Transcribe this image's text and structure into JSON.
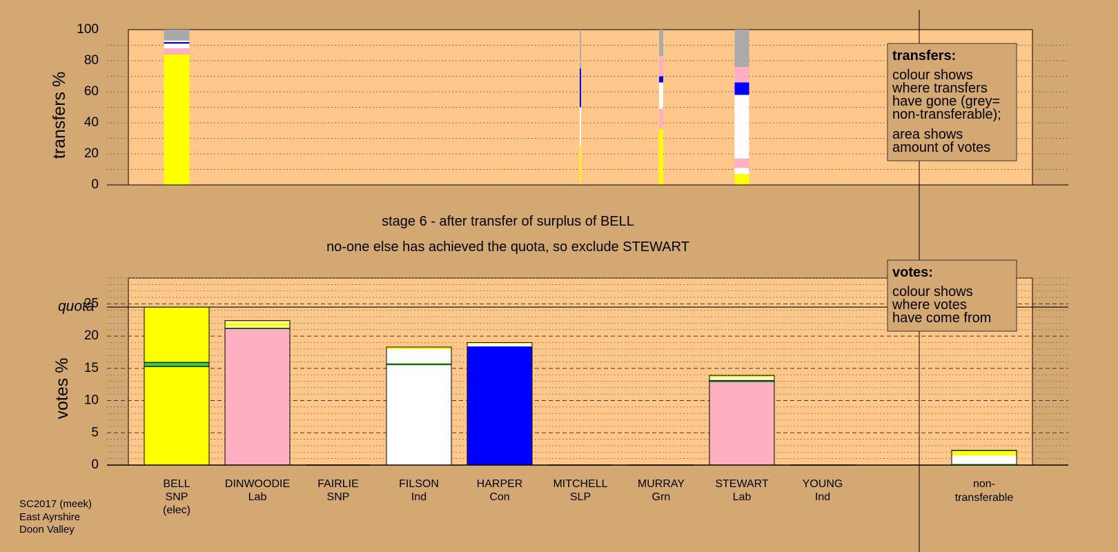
{
  "colors": {
    "background": "#d4a872",
    "plot_bg": "#ffc88a",
    "SNP": "#ffff00",
    "Lab": "#ffb0c0",
    "Ind": "#ffffff",
    "Con": "#0000ff",
    "SLP": "#cc0000",
    "Grn": "#44cc44",
    "non_transferable": "#aaaaaa",
    "dark_green": "#005000"
  },
  "stage": {
    "line1": "stage 6 - after transfer of surplus of BELL",
    "line2": "no-one else has achieved the quota, so exclude STEWART"
  },
  "footnote": {
    "line1": "SC2017 (meek)",
    "line2": "East Ayrshire",
    "line3": "Doon Valley"
  },
  "legend_transfers": {
    "title": "transfers:",
    "lines": [
      "colour shows",
      "where transfers",
      "have gone (grey=",
      "non-transferable);",
      "area shows",
      "amount of votes"
    ]
  },
  "legend_votes": {
    "title": "votes:",
    "lines": [
      "colour shows",
      "where votes",
      "have come from"
    ]
  },
  "candidates": [
    {
      "name": "BELL",
      "party": "SNP",
      "note": "(elec)"
    },
    {
      "name": "DINWOODIE",
      "party": "Lab",
      "note": ""
    },
    {
      "name": "FAIRLIE",
      "party": "SNP",
      "note": ""
    },
    {
      "name": "FILSON",
      "party": "Ind",
      "note": ""
    },
    {
      "name": "HARPER",
      "party": "Con",
      "note": ""
    },
    {
      "name": "MITCHELL",
      "party": "SLP",
      "note": ""
    },
    {
      "name": "MURRAY",
      "party": "Grn",
      "note": ""
    },
    {
      "name": "STEWART",
      "party": "Lab",
      "note": ""
    },
    {
      "name": "YOUNG",
      "party": "Ind",
      "note": ""
    }
  ],
  "non_transferable_label": {
    "line1": "non-",
    "line2": "transferable"
  },
  "chart_data": [
    {
      "type": "bar",
      "title": "transfers",
      "ylabel": "transfers %",
      "ylim": [
        0,
        100
      ],
      "yticks": [
        0,
        20,
        40,
        60,
        80,
        100
      ],
      "grid": true,
      "legend_position": "top-right",
      "columns": [
        {
          "candidate": "BELL",
          "segments": [
            {
              "color": "SNP",
              "from": 0,
              "to": 84
            },
            {
              "color": "Lab",
              "from": 84,
              "to": 88
            },
            {
              "color": "Ind",
              "from": 88,
              "to": 91
            },
            {
              "color": "Con",
              "from": 91,
              "to": 92
            },
            {
              "color": "Ind",
              "from": 92,
              "to": 93
            },
            {
              "color": "non_transferable",
              "from": 93,
              "to": 100
            }
          ]
        },
        {
          "candidate": "MITCHELL",
          "segments": [
            {
              "color": "SNP",
              "from": 0,
              "to": 25
            },
            {
              "color": "Ind",
              "from": 25,
              "to": 50
            },
            {
              "color": "Con",
              "from": 50,
              "to": 75
            },
            {
              "color": "non_transferable",
              "from": 75,
              "to": 100
            }
          ]
        },
        {
          "candidate": "MURRAY",
          "segments": [
            {
              "color": "SNP",
              "from": 0,
              "to": 36
            },
            {
              "color": "Lab",
              "from": 36,
              "to": 49
            },
            {
              "color": "Ind",
              "from": 49,
              "to": 66
            },
            {
              "color": "Con",
              "from": 66,
              "to": 70
            },
            {
              "color": "Lab",
              "from": 70,
              "to": 83
            },
            {
              "color": "non_transferable",
              "from": 83,
              "to": 100
            }
          ]
        },
        {
          "candidate": "STEWART",
          "segments": [
            {
              "color": "SNP",
              "from": 0,
              "to": 7
            },
            {
              "color": "Ind",
              "from": 7,
              "to": 11
            },
            {
              "color": "Lab",
              "from": 11,
              "to": 17
            },
            {
              "color": "Ind",
              "from": 17,
              "to": 58
            },
            {
              "color": "Con",
              "from": 58,
              "to": 66
            },
            {
              "color": "Lab",
              "from": 66,
              "to": 76
            },
            {
              "color": "non_transferable",
              "from": 76,
              "to": 100
            }
          ]
        }
      ]
    },
    {
      "type": "bar",
      "title": "votes",
      "ylabel": "votes %",
      "ylim": [
        0,
        29
      ],
      "yticks": [
        0,
        5,
        10,
        15,
        20,
        25
      ],
      "quota": 24.5,
      "quota_label": "quota",
      "grid": true,
      "legend_position": "top-right",
      "columns": [
        {
          "candidate": "BELL",
          "segments": [
            {
              "color": "SNP",
              "from": 0,
              "to": 15.2
            },
            {
              "color": "dark_green",
              "from": 15.2,
              "to": 15.4
            },
            {
              "color": "Grn",
              "from": 15.4,
              "to": 15.8
            },
            {
              "color": "dark_green",
              "from": 15.8,
              "to": 16.0
            },
            {
              "color": "SNP",
              "from": 16.0,
              "to": 24.5
            }
          ]
        },
        {
          "candidate": "DINWOODIE",
          "segments": [
            {
              "color": "Lab",
              "from": 0,
              "to": 21.1
            },
            {
              "color": "dark_green",
              "from": 21.1,
              "to": 21.3
            },
            {
              "color": "Ind",
              "from": 21.3,
              "to": 21.5
            },
            {
              "color": "SNP",
              "from": 21.5,
              "to": 22.0
            },
            {
              "color": "Ind",
              "from": 22.0,
              "to": 22.2
            },
            {
              "color": "SNP",
              "from": 22.2,
              "to": 22.4
            }
          ]
        },
        {
          "candidate": "FAIRLIE",
          "segments": []
        },
        {
          "candidate": "FILSON",
          "segments": [
            {
              "color": "Ind",
              "from": 0,
              "to": 15.5
            },
            {
              "color": "dark_green",
              "from": 15.5,
              "to": 15.7
            },
            {
              "color": "Grn",
              "from": 15.7,
              "to": 15.8
            },
            {
              "color": "Ind",
              "from": 15.8,
              "to": 18.0
            },
            {
              "color": "SNP",
              "from": 18.0,
              "to": 18.3
            }
          ]
        },
        {
          "candidate": "HARPER",
          "segments": [
            {
              "color": "Con",
              "from": 0,
              "to": 18.4
            },
            {
              "color": "Ind",
              "from": 18.4,
              "to": 18.8
            },
            {
              "color": "SNP",
              "from": 18.8,
              "to": 19.0
            }
          ]
        },
        {
          "candidate": "MITCHELL",
          "segments": []
        },
        {
          "candidate": "MURRAY",
          "segments": []
        },
        {
          "candidate": "STEWART",
          "segments": [
            {
              "color": "Lab",
              "from": 0,
              "to": 12.9
            },
            {
              "color": "dark_green",
              "from": 12.9,
              "to": 13.2
            },
            {
              "color": "Ind",
              "from": 13.2,
              "to": 13.6
            },
            {
              "color": "SNP",
              "from": 13.6,
              "to": 13.9
            }
          ]
        },
        {
          "candidate": "YOUNG",
          "segments": []
        },
        {
          "candidate": "non-transferable",
          "segments": [
            {
              "color": "Grn",
              "from": 0,
              "to": 0.2
            },
            {
              "color": "Ind",
              "from": 0.2,
              "to": 1.5
            },
            {
              "color": "SNP",
              "from": 1.5,
              "to": 2.2
            },
            {
              "color": "dark_green",
              "from": 2.2,
              "to": 2.3
            }
          ]
        }
      ]
    }
  ]
}
